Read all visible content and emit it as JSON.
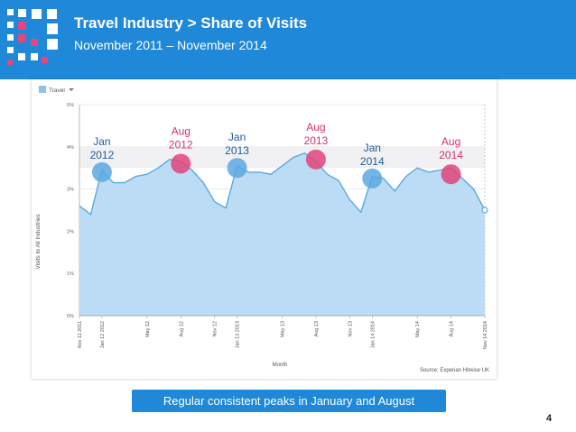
{
  "slide": {
    "title": "Travel Industry > Share of Visits",
    "subtitle": "November 2011 – November 2014",
    "banner": "Regular consistent peaks in January and August",
    "page_number": "4",
    "colors": {
      "header_bg": "#1f88d8",
      "area_fill": "#bcdcf5",
      "line": "#5aa8e0",
      "jan_marker": "#5aa8e0",
      "aug_marker": "#e0447a",
      "jan_text": "#1f5c99",
      "aug_text": "#d6336c"
    }
  },
  "chart_data": {
    "type": "area",
    "legend": {
      "label": "Travel",
      "position": "top-left"
    },
    "ylabel": "Visits to All Industries",
    "xlabel": "Month",
    "source": "Source: Experian Hitwise UK",
    "ylim": [
      0,
      5
    ],
    "yticks": [
      "0%",
      "1%",
      "2%",
      "3%",
      "4%",
      "5%"
    ],
    "xticks": [
      {
        "label": "Nov 11 2011",
        "x": 0
      },
      {
        "label": "Jan 12 2012",
        "x": 2
      },
      {
        "label": "May 12",
        "x": 6
      },
      {
        "label": "Aug 12",
        "x": 9
      },
      {
        "label": "Nov 12",
        "x": 12
      },
      {
        "label": "Jan 13 2013",
        "x": 14
      },
      {
        "label": "May 13",
        "x": 18
      },
      {
        "label": "Aug 13",
        "x": 21
      },
      {
        "label": "Nov 13",
        "x": 24
      },
      {
        "label": "Jan 14 2014",
        "x": 26
      },
      {
        "label": "May 14",
        "x": 30
      },
      {
        "label": "Aug 14",
        "x": 33
      },
      {
        "label": "Nov 14 2014",
        "x": 36
      }
    ],
    "series": [
      {
        "name": "Travel",
        "values": [
          2.6,
          2.4,
          3.45,
          3.15,
          3.15,
          3.3,
          3.35,
          3.5,
          3.7,
          3.65,
          3.45,
          3.15,
          2.7,
          2.55,
          3.55,
          3.4,
          3.4,
          3.35,
          3.55,
          3.75,
          3.85,
          3.65,
          3.35,
          3.2,
          2.75,
          2.45,
          3.3,
          3.25,
          2.95,
          3.3,
          3.5,
          3.4,
          3.45,
          3.5,
          3.25,
          3.0,
          2.5
        ]
      }
    ],
    "annotations": [
      {
        "month": "Jan",
        "year": "2012",
        "x": 2,
        "y": 3.4,
        "kind": "jan"
      },
      {
        "month": "Aug",
        "year": "2012",
        "x": 9,
        "y": 3.6,
        "kind": "aug"
      },
      {
        "month": "Jan",
        "year": "2013",
        "x": 14,
        "y": 3.5,
        "kind": "jan"
      },
      {
        "month": "Aug",
        "year": "2013",
        "x": 21,
        "y": 3.7,
        "kind": "aug"
      },
      {
        "month": "Jan",
        "year": "2014",
        "x": 26,
        "y": 3.25,
        "kind": "jan"
      },
      {
        "month": "Aug",
        "year": "2014",
        "x": 33,
        "y": 3.35,
        "kind": "aug"
      }
    ]
  }
}
